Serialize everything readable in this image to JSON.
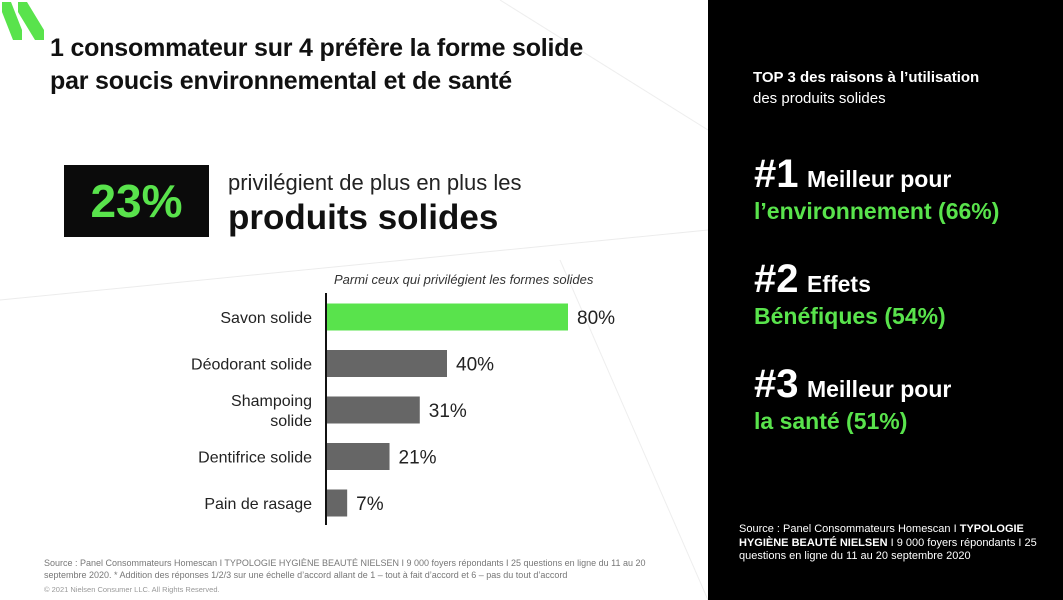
{
  "title": {
    "line1": "1 consommateur sur 4 préfère la forme solide",
    "line2": "par soucis environnemental et de santé"
  },
  "stat": {
    "value": "23%",
    "line1": "privilégient de plus en plus les",
    "line2": "produits solides"
  },
  "chart_subtitle": "Parmi ceux qui privilégient les formes solides",
  "chart_data": {
    "type": "bar",
    "orientation": "horizontal",
    "categories": [
      "Savon solide",
      "Déodorant solide",
      "Shampoing solide",
      "Dentifrice solide",
      "Pain de rasage"
    ],
    "category_lines": [
      [
        "Savon solide"
      ],
      [
        "Déodorant solide"
      ],
      [
        "Shampoing",
        "solide"
      ],
      [
        "Dentifrice solide"
      ],
      [
        "Pain de rasage"
      ]
    ],
    "values": [
      80,
      40,
      31,
      21,
      7
    ],
    "value_labels": [
      "80%",
      "40%",
      "31%",
      "21%",
      "7%"
    ],
    "bar_colors": [
      "#59e34c",
      "#666666",
      "#666666",
      "#666666",
      "#666666"
    ],
    "xlim": [
      0,
      100
    ],
    "title": "Parmi ceux qui privilégient les formes solides",
    "grid": false,
    "legend": "none"
  },
  "source_left": {
    "line1": "Source : Panel Consommateurs Homescan I TYPOLOGIE HYGIÈNE BEAUTÉ NIELSEN I 9 000 foyers répondants I 25 questions en ligne du 11 au 20",
    "line2": "septembre 2020. * Addition des réponses 1/2/3 sur une échelle d’accord allant de 1 – tout à fait d’accord et 6 – pas du tout d’accord"
  },
  "copyright": "© 2021 Nielsen Consumer LLC. All Rights Reserved.",
  "top3": {
    "title": "TOP 3 des raisons à l’utilisation",
    "subtitle": "des produits solides",
    "reasons": [
      {
        "rank": "#1",
        "head": "Meilleur pour",
        "detail": "l’environnement (66%)"
      },
      {
        "rank": "#2",
        "head": "Effets",
        "detail": "Bénéfiques (54%)"
      },
      {
        "rank": "#3",
        "head": "Meilleur pour",
        "detail": "la santé (51%)"
      }
    ]
  },
  "source_right": {
    "prefix": "Source : Panel Consommateurs Homescan I",
    "bold": "TYPOLOGIE HYGIÈNE BEAUTÉ NIELSEN",
    "suffix": "I 9 000 foyers répondants I 25 questions en ligne du 11 au 20 septembre 2020"
  },
  "colors": {
    "accent": "#59e34c",
    "bar_default": "#666666",
    "dark": "#000000"
  }
}
